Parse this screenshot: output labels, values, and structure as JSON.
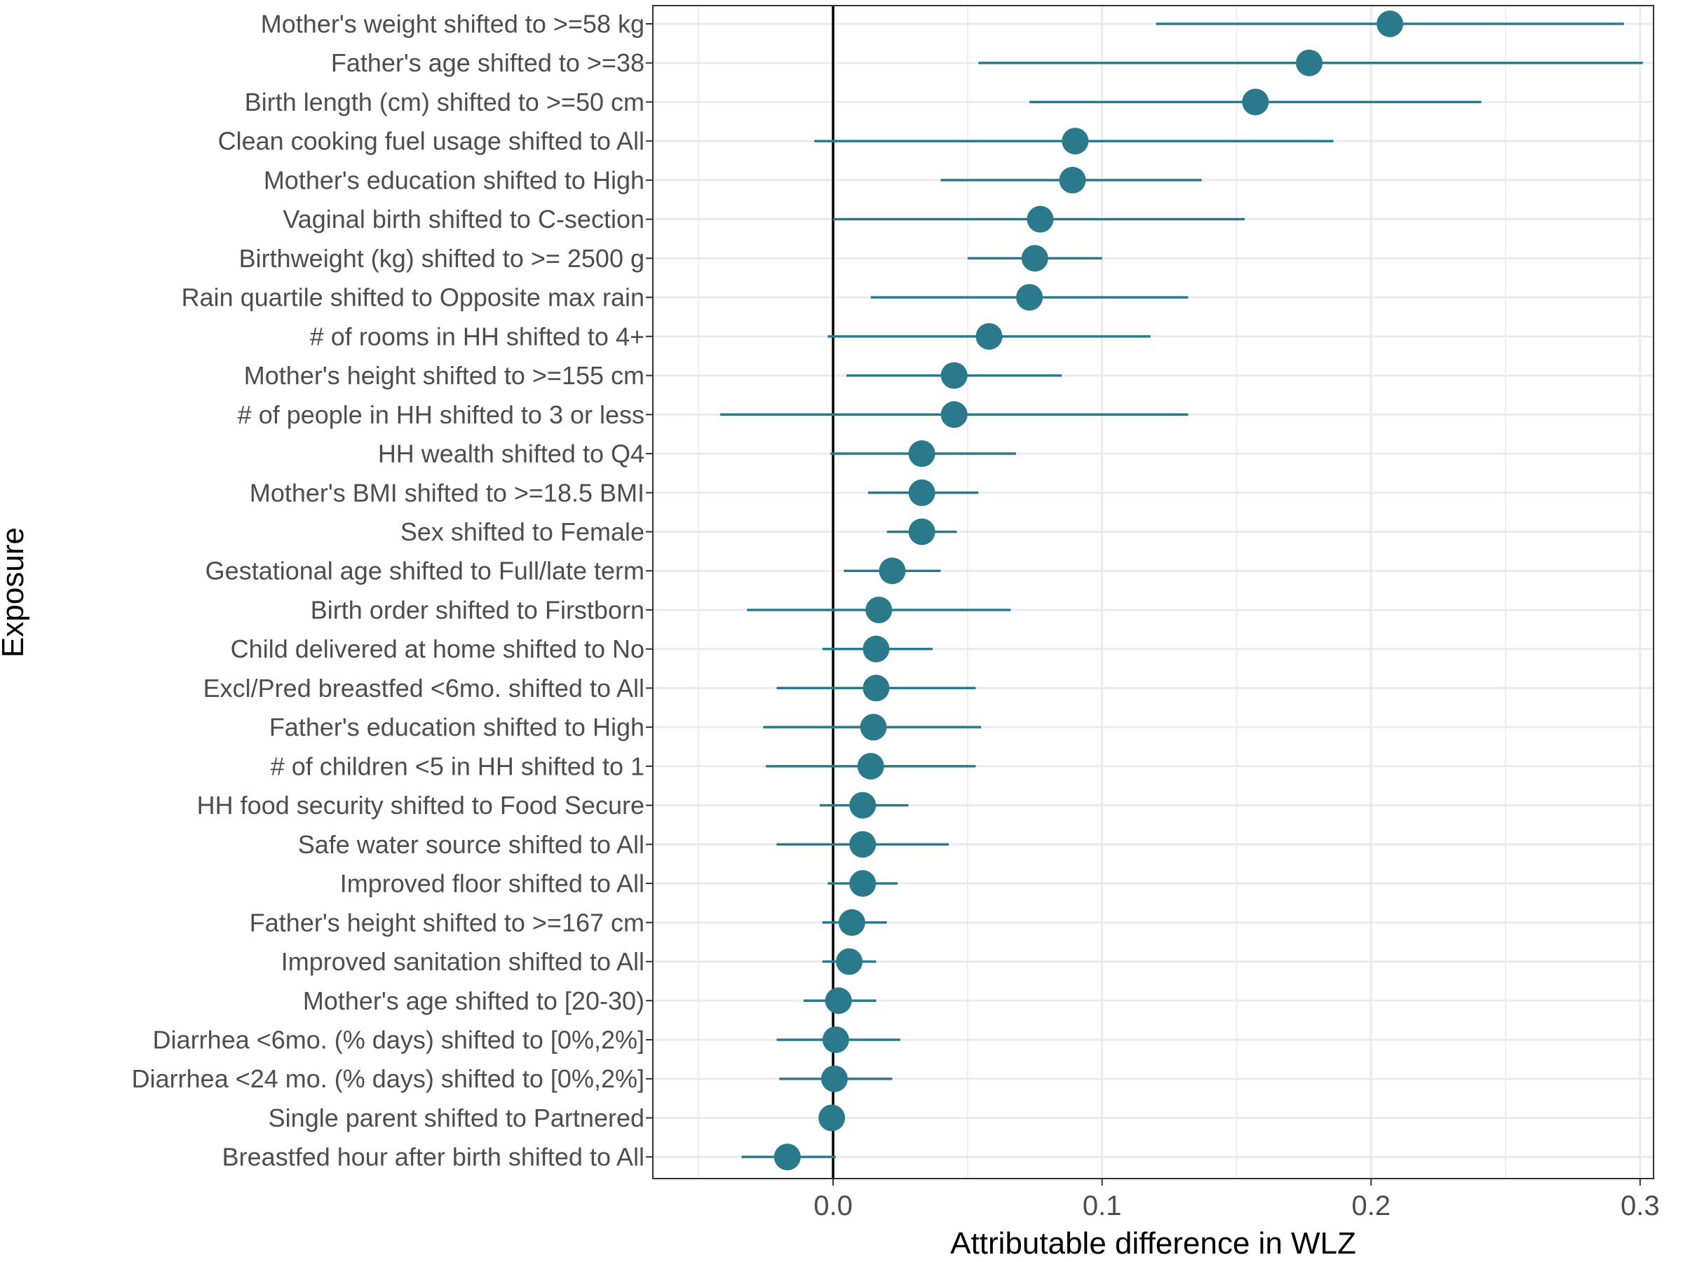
{
  "chart_data": {
    "type": "scatter",
    "subtype": "dot-and-whisker",
    "title": "",
    "xlabel": "Attributable difference in WLZ",
    "ylabel": "Exposure",
    "xlim": [
      -0.067,
      0.305
    ],
    "x_ticks": [
      0.0,
      0.1,
      0.2,
      0.3
    ],
    "x_tick_labels": [
      "0.0",
      "0.1",
      "0.2",
      "0.3"
    ],
    "reference_line_x": 0,
    "grid": true,
    "legend": "none",
    "colors": {
      "point": "#2a7a8c",
      "ci": "#2a7a8c",
      "grid": "#ebebeb",
      "reference": "#000000"
    },
    "categories": [
      "Mother's weight shifted to >=58 kg",
      "Father's age shifted to >=38",
      "Birth length (cm) shifted to >=50 cm",
      "Clean cooking fuel usage shifted to All",
      "Mother's education shifted to High",
      "Vaginal birth shifted to C-section",
      "Birthweight (kg) shifted to >= 2500 g",
      "Rain quartile shifted to Opposite max rain",
      "# of rooms in HH shifted to 4+",
      "Mother's height shifted to >=155 cm",
      "# of people in HH shifted to 3 or less",
      "HH wealth shifted to Q4",
      "Mother's BMI shifted to >=18.5 BMI",
      "Sex shifted to Female",
      "Gestational age shifted to Full/late term",
      "Birth order shifted to Firstborn",
      "Child delivered at home shifted to No",
      "Excl/Pred breastfed <6mo. shifted to All",
      "Father's education shifted to High",
      "# of children <5 in HH shifted to 1",
      "HH food security shifted to Food Secure",
      "Safe water source shifted to All",
      "Improved floor shifted to All",
      "Father's height shifted to >=167 cm",
      "Improved sanitation shifted to All",
      "Mother's age shifted to [20-30)",
      "Diarrhea <6mo. (% days) shifted to [0%,2%]",
      "Diarrhea <24 mo.  (% days) shifted to [0%,2%]",
      "Single parent shifted to Partnered",
      "Breastfed hour after birth shifted to All"
    ],
    "estimates": [
      0.207,
      0.177,
      0.157,
      0.09,
      0.089,
      0.077,
      0.075,
      0.073,
      0.058,
      0.045,
      0.045,
      0.033,
      0.033,
      0.033,
      0.022,
      0.017,
      0.016,
      0.016,
      0.015,
      0.014,
      0.011,
      0.011,
      0.011,
      0.007,
      0.006,
      0.002,
      0.001,
      0.0005,
      -0.0005,
      -0.017
    ],
    "ci_lower": [
      0.12,
      0.054,
      0.073,
      -0.007,
      0.04,
      0.0,
      0.05,
      0.014,
      -0.002,
      0.005,
      -0.042,
      -0.001,
      0.013,
      0.02,
      0.004,
      -0.032,
      -0.004,
      -0.021,
      -0.026,
      -0.025,
      -0.005,
      -0.021,
      -0.002,
      -0.004,
      -0.004,
      -0.011,
      -0.021,
      -0.02,
      -0.001,
      -0.034
    ],
    "ci_upper": [
      0.294,
      0.301,
      0.241,
      0.186,
      0.137,
      0.153,
      0.1,
      0.132,
      0.118,
      0.085,
      0.132,
      0.068,
      0.054,
      0.046,
      0.04,
      0.066,
      0.037,
      0.053,
      0.055,
      0.053,
      0.028,
      0.043,
      0.024,
      0.02,
      0.016,
      0.016,
      0.025,
      0.022,
      0.001,
      0.001
    ]
  }
}
